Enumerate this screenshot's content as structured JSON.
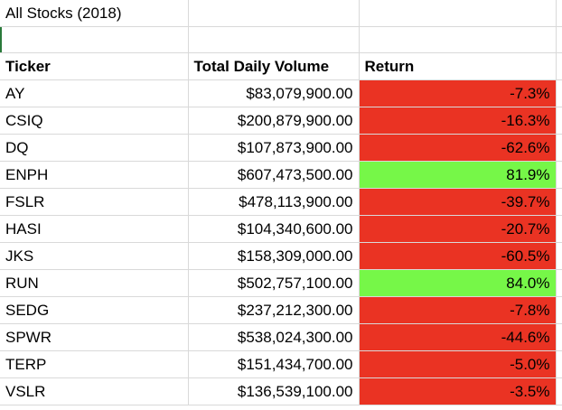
{
  "sheet": {
    "title": "All Stocks (2018)",
    "headers": {
      "ticker": "Ticker",
      "volume": "Total Daily Volume",
      "return": "Return"
    },
    "rows": [
      {
        "ticker": "AY",
        "volume": "$83,079,900.00",
        "return": "-7.3%",
        "status": "negative"
      },
      {
        "ticker": "CSIQ",
        "volume": "$200,879,900.00",
        "return": "-16.3%",
        "status": "negative"
      },
      {
        "ticker": "DQ",
        "volume": "$107,873,900.00",
        "return": "-62.6%",
        "status": "negative"
      },
      {
        "ticker": "ENPH",
        "volume": "$607,473,500.00",
        "return": "81.9%",
        "status": "positive"
      },
      {
        "ticker": "FSLR",
        "volume": "$478,113,900.00",
        "return": "-39.7%",
        "status": "negative"
      },
      {
        "ticker": "HASI",
        "volume": "$104,340,600.00",
        "return": "-20.7%",
        "status": "negative"
      },
      {
        "ticker": "JKS",
        "volume": "$158,309,000.00",
        "return": "-60.5%",
        "status": "negative"
      },
      {
        "ticker": "RUN",
        "volume": "$502,757,100.00",
        "return": "84.0%",
        "status": "positive"
      },
      {
        "ticker": "SEDG",
        "volume": "$237,212,300.00",
        "return": "-7.8%",
        "status": "negative"
      },
      {
        "ticker": "SPWR",
        "volume": "$538,024,300.00",
        "return": "-44.6%",
        "status": "negative"
      },
      {
        "ticker": "TERP",
        "volume": "$151,434,700.00",
        "return": "-5.0%",
        "status": "negative"
      },
      {
        "ticker": "VSLR",
        "volume": "$136,539,100.00",
        "return": "-3.5%",
        "status": "negative"
      }
    ]
  },
  "colors": {
    "negative": "#ea3323",
    "positive": "#76f748",
    "gridline": "#d9d9d9"
  }
}
